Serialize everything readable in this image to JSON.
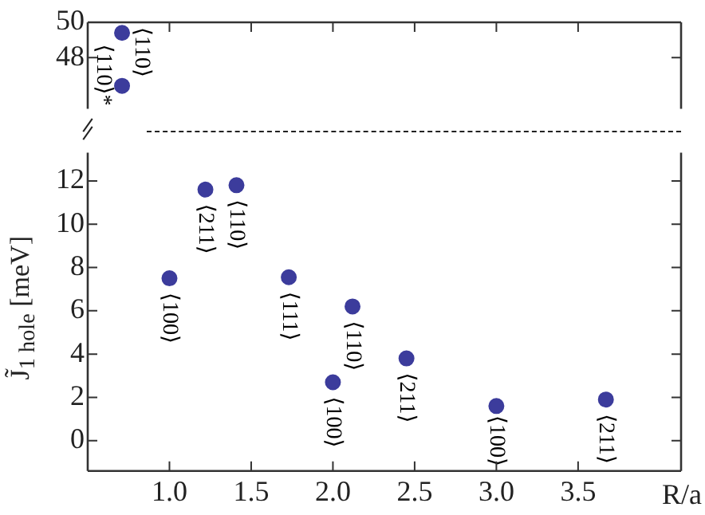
{
  "chart_data": [
    {
      "type": "scatter",
      "x": [
        0.71,
        0.71
      ],
      "values": [
        49.4,
        46.4
      ],
      "color": "#3c3c9c",
      "marker": "circle",
      "xlim": [
        0.5,
        4.13
      ],
      "xticks": [
        1.0,
        1.5,
        2.0,
        2.5,
        3.0,
        3.5
      ],
      "ylim": [
        45.1,
        50
      ],
      "yticks": [
        48,
        50
      ],
      "tick_labels": "y",
      "grid": false,
      "legend": false,
      "annotations": [
        {
          "text": "⟨110⟩",
          "x": 0.71,
          "y": 49.4
        },
        {
          "text": "⟨110⟩*",
          "x": 0.71,
          "y": 46.4
        }
      ]
    },
    {
      "type": "scatter",
      "x": [
        1.0,
        1.22,
        1.41,
        1.73,
        2.0,
        2.12,
        2.45,
        3.0,
        3.67
      ],
      "values": [
        7.5,
        11.6,
        11.8,
        7.55,
        2.7,
        6.2,
        3.8,
        1.6,
        1.9
      ],
      "color": "#3c3c9c",
      "marker": "circle",
      "xlim": [
        0.5,
        4.13
      ],
      "xticks": [
        {
          "value": 1.0,
          "label": "1.0"
        },
        {
          "value": 1.5,
          "label": "1.5"
        },
        {
          "value": 2.0,
          "label": "2.0"
        },
        {
          "value": 2.5,
          "label": "2.5"
        },
        {
          "value": 3.0,
          "label": "3.0"
        },
        {
          "value": 3.5,
          "label": "3.5"
        }
      ],
      "ylim": [
        -1.4,
        13.3
      ],
      "yticks": [
        0,
        2,
        4,
        6,
        8,
        10,
        12
      ],
      "grid": false,
      "legend": false,
      "xlabel": "R/a",
      "ylabel": "J̃$_{1 hole}$ [meV]",
      "annotations": [
        {
          "text": "⟨100⟩",
          "x": 1.0,
          "y": 7.5
        },
        {
          "text": "⟨211⟩",
          "x": 1.22,
          "y": 11.6
        },
        {
          "text": "⟨110⟩",
          "x": 1.41,
          "y": 11.8
        },
        {
          "text": "⟨111⟩",
          "x": 1.73,
          "y": 7.55
        },
        {
          "text": "⟨100⟩",
          "x": 2.0,
          "y": 2.7
        },
        {
          "text": "⟨110⟩",
          "x": 2.12,
          "y": 6.2
        },
        {
          "text": "⟨211⟩",
          "x": 2.45,
          "y": 3.8
        },
        {
          "text": "⟨100⟩",
          "x": 3.0,
          "y": 1.6
        },
        {
          "text": "⟨211⟩",
          "x": 3.67,
          "y": 1.9
        }
      ]
    }
  ]
}
